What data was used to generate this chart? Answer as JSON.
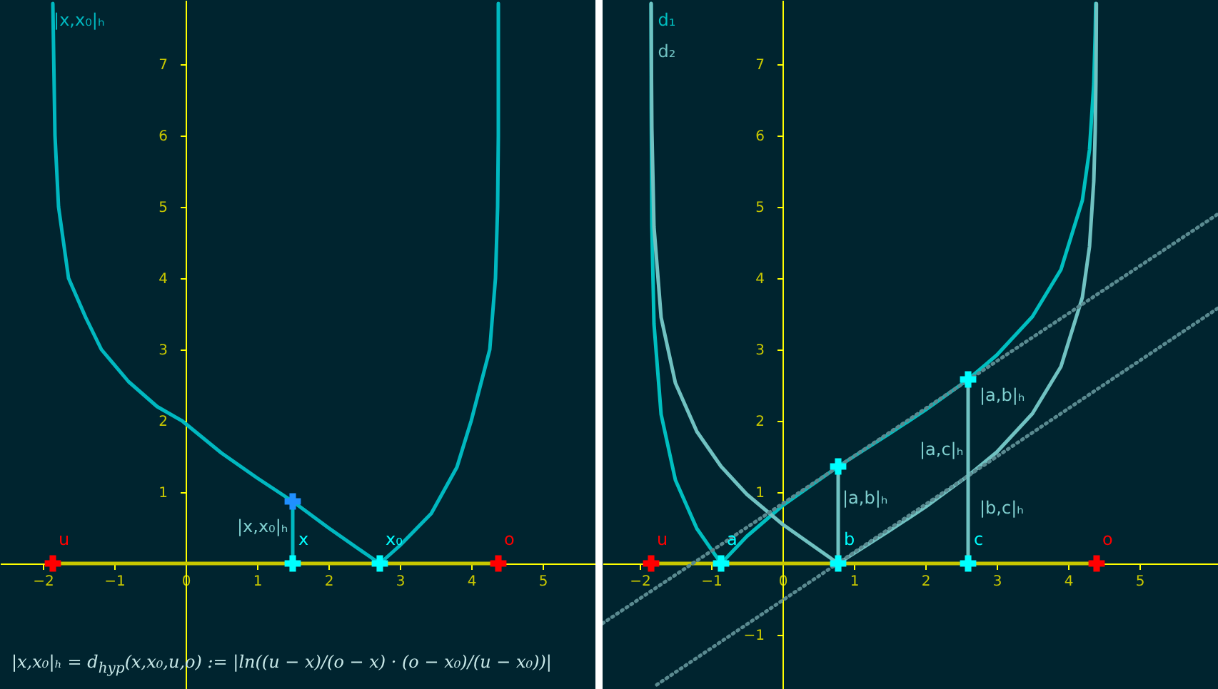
{
  "chart_data": [
    {
      "type": "line",
      "xlim": [
        -2.6,
        5.74
      ],
      "ylim": [
        -1.76,
        7.9
      ],
      "xticks": [
        -2,
        -1,
        0,
        1,
        2,
        3,
        4,
        5
      ],
      "yticks": [
        1,
        2,
        3,
        4,
        5,
        6,
        7
      ],
      "legend": "top left",
      "annotations": [
        "|x,x₀|ₕ",
        "|x,x₀|ₕ = d$_{hyp}$(x,x₀,u,o) := |ln((u − x)/(o − x) · (o − x₀)/(u − x₀))|"
      ],
      "series": [
        {
          "name": "|x,x₀|ₕ",
          "color": "#00b8c0",
          "x": [
            -1.86,
            -1.83,
            -1.78,
            -1.64,
            -1.4,
            -1.18,
            -0.8,
            -0.4,
            -0.05,
            0.5,
            1,
            1.5,
            2,
            2.4,
            2.72,
            3.0,
            3.44,
            3.8,
            4.0,
            4.26,
            4.34,
            4.37,
            4.38,
            4.38
          ],
          "values": [
            7.85,
            6,
            5,
            4,
            3.45,
            3,
            2.55,
            2.2,
            2,
            1.55,
            1.2,
            0.87,
            0.5,
            0.22,
            0,
            0.25,
            0.7,
            1.35,
            2,
            3,
            4,
            5,
            6,
            7.85
          ]
        },
        {
          "color": "#c8c800",
          "x": [
            -1.86,
            4.38
          ],
          "values": [
            0,
            0
          ]
        },
        {
          "color": "#00b8c0",
          "x": [
            1.5,
            1.5
          ],
          "values": [
            0,
            0.87
          ]
        },
        {
          "type": "scatter",
          "marker": "cross",
          "name": "u",
          "color": "#ff0000",
          "x": [
            -1.86
          ],
          "values": [
            0
          ]
        },
        {
          "type": "scatter",
          "marker": "cross",
          "name": "o",
          "color": "#ff0000",
          "x": [
            4.38
          ],
          "values": [
            0
          ]
        },
        {
          "type": "scatter",
          "marker": "cross",
          "name": "x",
          "color": "#00ffff",
          "x": [
            1.5
          ],
          "values": [
            0
          ]
        },
        {
          "type": "scatter",
          "marker": "cross",
          "name": "x₀",
          "color": "#00ffff",
          "x": [
            2.72
          ],
          "values": [
            0
          ]
        },
        {
          "type": "scatter",
          "marker": "cross",
          "color": "#2090ff",
          "x": [
            1.5
          ],
          "values": [
            0.87
          ]
        }
      ]
    },
    {
      "type": "line",
      "xlim": [
        -2.52,
        6.1
      ],
      "ylim": [
        -1.76,
        7.9
      ],
      "xticks": [
        -2,
        -1,
        0,
        1,
        2,
        3,
        4,
        5
      ],
      "yticks": [
        -1,
        1,
        2,
        3,
        4,
        5,
        6,
        7
      ],
      "legend": "top left",
      "annotations": [
        "|a,b|ₕ",
        "|a,b|ₕ",
        "|a,c|ₕ",
        "|b,c|ₕ"
      ],
      "series": [
        {
          "name": "d₁",
          "color": "#00bfc0",
          "x": [
            -1.84,
            -1.838,
            -1.83,
            -1.8,
            -1.7,
            -1.5,
            -1.2,
            -0.86,
            -0.5,
            0,
            0.78,
            1.5,
            2,
            2.6,
            3,
            3.5,
            3.9,
            4.2,
            4.3,
            4.36,
            4.38,
            4.387
          ],
          "values": [
            7.85,
            6.37,
            4.75,
            3.36,
            2.09,
            1.17,
            0.49,
            0,
            0.38,
            0.81,
            1.36,
            1.82,
            2.15,
            2.58,
            2.92,
            3.46,
            4.12,
            5.09,
            5.8,
            6.72,
            7.42,
            7.85
          ]
        },
        {
          "name": "d₂",
          "color": "#70c2c2",
          "x": [
            -1.84,
            -1.835,
            -1.83,
            -1.8,
            -1.7,
            -1.5,
            -1.2,
            -0.86,
            -0.5,
            0,
            0.78,
            1.5,
            2,
            2.6,
            3,
            3.5,
            3.9,
            4.2,
            4.3,
            4.36,
            4.38,
            4.39,
            4.395,
            4.397
          ],
          "values": [
            7.85,
            6.81,
            6.11,
            4.72,
            3.45,
            2.53,
            1.85,
            1.36,
            0.97,
            0.55,
            0,
            0.46,
            0.79,
            1.23,
            1.56,
            2.1,
            2.76,
            3.73,
            4.44,
            5.36,
            6.06,
            6.75,
            7.45,
            7.85
          ]
        },
        {
          "color": "#c8c800",
          "x": [
            -1.84,
            4.4
          ],
          "values": [
            0,
            0
          ]
        },
        {
          "color": "#5a8a90",
          "line_style": "dotted",
          "x": [
            -2.52,
            6.1
          ],
          "values": [
            -0.84,
            4.9
          ]
        },
        {
          "color": "#5a8a90",
          "line_style": "dotted",
          "x": [
            -1.76,
            6.1
          ],
          "values": [
            -1.7,
            3.58
          ]
        },
        {
          "color": "#70c2c2",
          "x": [
            0.78,
            0.78
          ],
          "values": [
            0,
            1.36
          ]
        },
        {
          "color": "#70c2c2",
          "x": [
            2.6,
            2.6
          ],
          "values": [
            0,
            2.58
          ]
        },
        {
          "type": "scatter",
          "marker": "cross",
          "name": "u",
          "color": "#ff0000",
          "x": [
            -1.84
          ],
          "values": [
            0
          ]
        },
        {
          "type": "scatter",
          "marker": "cross",
          "name": "o",
          "color": "#ff0000",
          "x": [
            4.4
          ],
          "values": [
            0
          ]
        },
        {
          "type": "scatter",
          "marker": "cross",
          "name": "a",
          "color": "#00ffff",
          "x": [
            -0.86
          ],
          "values": [
            0
          ]
        },
        {
          "type": "scatter",
          "marker": "cross",
          "name": "b",
          "color": "#00ffff",
          "x": [
            0.78
          ],
          "values": [
            0
          ]
        },
        {
          "type": "scatter",
          "marker": "cross",
          "name": "c",
          "color": "#00ffff",
          "x": [
            2.6
          ],
          "values": [
            0
          ]
        },
        {
          "type": "scatter",
          "marker": "cross",
          "color": "#00ffff",
          "x": [
            0.78,
            2.6
          ],
          "values": [
            1.36,
            2.58
          ]
        }
      ]
    }
  ]
}
